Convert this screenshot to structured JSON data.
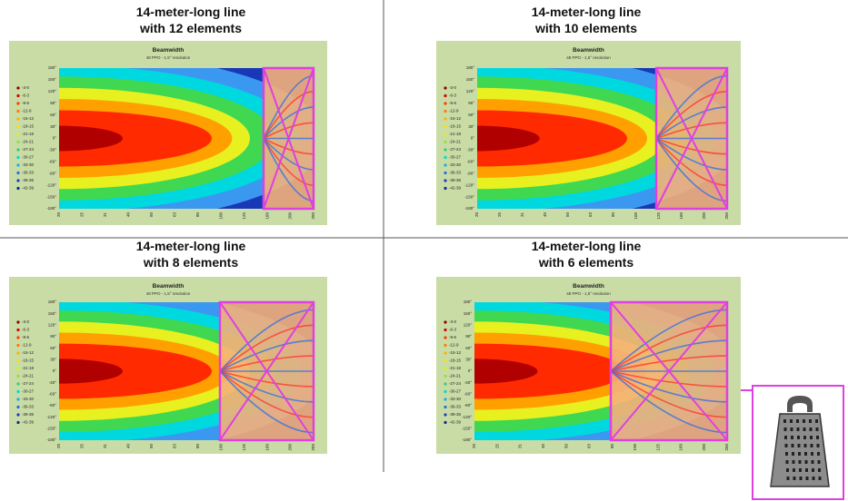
{
  "panels": [
    {
      "title_line1": "14-meter-long line",
      "title_line2": "with 12 elements"
    },
    {
      "title_line1": "14-meter-long line",
      "title_line2": "with 10 elements"
    },
    {
      "title_line1": "14-meter-long line",
      "title_line2": "with 8 elements"
    },
    {
      "title_line1": "14-meter-long line",
      "title_line2": "with 6 elements"
    }
  ],
  "chart_common": {
    "title": "Beamwidth",
    "subtitle": "48 PPO - 1,5° resolution",
    "legend": [
      "-3-0",
      "-6-3",
      "-9-6",
      "-12-9",
      "-15-12",
      "-18-15",
      "-21-18",
      "-24-21",
      "-27-24",
      "-30-27",
      "-33-30",
      "-36-33",
      "-39-36",
      "-42-39"
    ],
    "yticks": [
      "180°",
      "150°",
      "120°",
      "90°",
      "60°",
      "30°",
      "0°",
      "-30°",
      "-60°",
      "-90°",
      "-120°",
      "-150°",
      "-180°"
    ],
    "xticks": [
      "20",
      "25",
      "31",
      "40",
      "50",
      "63",
      "80",
      "100",
      "125",
      "160",
      "200",
      "250"
    ]
  }
}
